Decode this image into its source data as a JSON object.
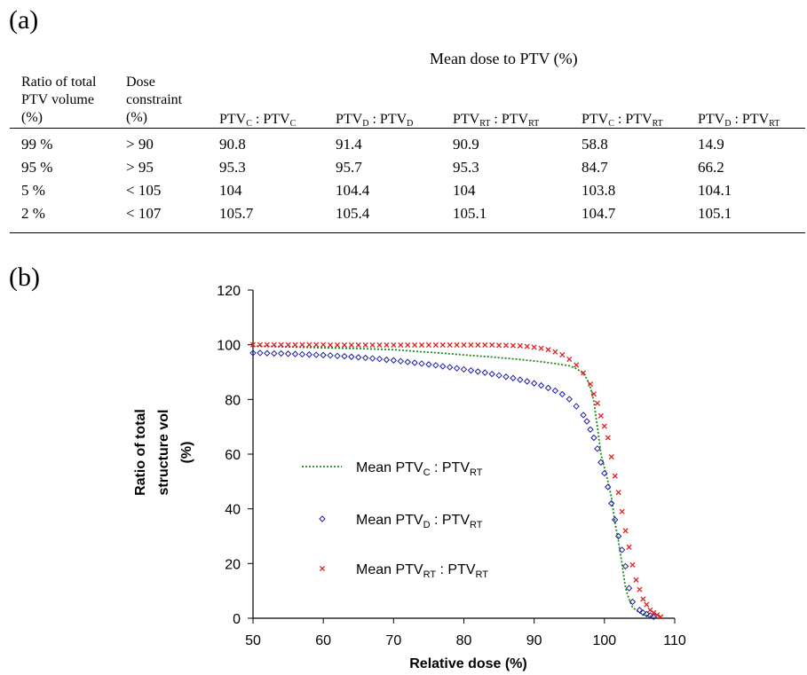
{
  "panel_labels": {
    "a": "(a)",
    "b": "(b)"
  },
  "table": {
    "group_header": "Mean dose to PTV (%)",
    "col_headers": [
      [
        "Ratio of total",
        "PTV volume",
        "(%)"
      ],
      [
        "Dose",
        "constraint",
        "(%)"
      ]
    ],
    "dose_cols": [
      {
        "a": "PTV",
        "as": "C",
        "sep": " : ",
        "b": "PTV",
        "bs": "C"
      },
      {
        "a": "PTV",
        "as": "D",
        "sep": " : ",
        "b": "PTV",
        "bs": "D"
      },
      {
        "a": "PTV",
        "as": "RT",
        "sep": " : ",
        "b": "PTV",
        "bs": "RT"
      },
      {
        "a": "PTV",
        "as": "C",
        "sep": " : ",
        "b": "PTV",
        "bs": "RT"
      },
      {
        "a": "PTV",
        "as": "D",
        "sep": " :  ",
        "b": "PTV",
        "bs": "RT"
      }
    ],
    "rows": [
      [
        "99 %",
        "> 90",
        "90.8",
        "91.4",
        "90.9",
        "58.8",
        "14.9"
      ],
      [
        "95 %",
        "> 95",
        "95.3",
        "95.7",
        "95.3",
        "84.7",
        "66.2"
      ],
      [
        "5 %",
        "< 105",
        "104",
        "104.4",
        "104",
        "103.8",
        "104.1"
      ],
      [
        "2 %",
        "< 107",
        "105.7",
        "105.4",
        "105.1",
        "104.7",
        "105.1"
      ]
    ]
  },
  "chart_data": {
    "type": "scatter",
    "xlabel": "Relative dose (%)",
    "ylabel_lines": [
      "Ratio of total",
      "structure vol",
      "(%)"
    ],
    "xlim": [
      50,
      110
    ],
    "ylim": [
      0,
      120
    ],
    "xticks": [
      50,
      60,
      70,
      80,
      90,
      100,
      110
    ],
    "yticks": [
      0,
      20,
      40,
      60,
      80,
      100,
      120
    ],
    "grid": false,
    "legend_position": "center-left",
    "series": [
      {
        "name": "Mean PTVC : PTVRT",
        "legend": {
          "pre": "Mean PTV",
          "s1": "C",
          "mid": " : PTV",
          "s2": "RT"
        },
        "style": "dotted-line",
        "color": "#1a8a1a",
        "points": [
          [
            50,
            99.5
          ],
          [
            55,
            99.2
          ],
          [
            60,
            98.9
          ],
          [
            65,
            98.6
          ],
          [
            70,
            98.2
          ],
          [
            73,
            97.6
          ],
          [
            76,
            97.1
          ],
          [
            80,
            96.3
          ],
          [
            84,
            95.5
          ],
          [
            88,
            94.6
          ],
          [
            91,
            93.8
          ],
          [
            93,
            93.1
          ],
          [
            95,
            92.3
          ],
          [
            96,
            91.3
          ],
          [
            97,
            89.5
          ],
          [
            97.5,
            87.5
          ],
          [
            98,
            84.5
          ],
          [
            98.5,
            79
          ],
          [
            99,
            70
          ],
          [
            99.5,
            60
          ],
          [
            100,
            55
          ],
          [
            100.5,
            50
          ],
          [
            101,
            44
          ],
          [
            101.5,
            35
          ],
          [
            102,
            28
          ],
          [
            102.5,
            20
          ],
          [
            103,
            11
          ],
          [
            103.5,
            7
          ],
          [
            104,
            4
          ],
          [
            105,
            2
          ],
          [
            106,
            1
          ],
          [
            107,
            0.5
          ]
        ]
      },
      {
        "name": "Mean PTVD : PTVRT",
        "legend": {
          "pre": "Mean PTV",
          "s1": "D",
          "mid": " : PTV",
          "s2": "RT"
        },
        "style": "diamond",
        "color": "#1f1fa0",
        "points": [
          [
            50,
            97.0
          ],
          [
            51,
            97.0
          ],
          [
            52,
            96.9
          ],
          [
            53,
            96.8
          ],
          [
            54,
            96.8
          ],
          [
            55,
            96.7
          ],
          [
            56,
            96.6
          ],
          [
            57,
            96.5
          ],
          [
            58,
            96.4
          ],
          [
            59,
            96.3
          ],
          [
            60,
            96.2
          ],
          [
            61,
            96.1
          ],
          [
            62,
            95.9
          ],
          [
            63,
            95.8
          ],
          [
            64,
            95.6
          ],
          [
            65,
            95.4
          ],
          [
            66,
            95.2
          ],
          [
            67,
            95.0
          ],
          [
            68,
            94.8
          ],
          [
            69,
            94.5
          ],
          [
            70,
            94.3
          ],
          [
            71,
            94.0
          ],
          [
            72,
            93.7
          ],
          [
            73,
            93.4
          ],
          [
            74,
            93.1
          ],
          [
            75,
            92.8
          ],
          [
            76,
            92.5
          ],
          [
            77,
            92.1
          ],
          [
            78,
            91.8
          ],
          [
            79,
            91.4
          ],
          [
            80,
            91.0
          ],
          [
            81,
            90.6
          ],
          [
            82,
            90.2
          ],
          [
            83,
            89.8
          ],
          [
            84,
            89.3
          ],
          [
            85,
            88.8
          ],
          [
            86,
            88.3
          ],
          [
            87,
            87.8
          ],
          [
            88,
            87.2
          ],
          [
            89,
            86.6
          ],
          [
            90,
            85.9
          ],
          [
            91,
            85.1
          ],
          [
            92,
            84.2
          ],
          [
            93,
            83.2
          ],
          [
            94,
            81.9
          ],
          [
            95,
            80.1
          ],
          [
            96,
            77.5
          ],
          [
            97,
            74.3
          ],
          [
            97.5,
            72
          ],
          [
            98,
            69.0
          ],
          [
            98.5,
            66
          ],
          [
            99,
            62
          ],
          [
            99.5,
            57
          ],
          [
            100,
            53
          ],
          [
            100.5,
            48
          ],
          [
            101,
            42
          ],
          [
            101.5,
            36
          ],
          [
            102,
            30
          ],
          [
            102.5,
            25
          ],
          [
            103,
            19
          ],
          [
            103.5,
            11
          ],
          [
            104,
            6
          ],
          [
            105,
            3
          ],
          [
            105.5,
            2
          ],
          [
            106,
            1.5
          ],
          [
            106.5,
            1
          ],
          [
            107,
            0.5
          ]
        ]
      },
      {
        "name": "Mean PTVRT : PTVRT",
        "legend": {
          "pre": "Mean PTV",
          "s1": "RT",
          "mid": " : PTV",
          "s2": "RT"
        },
        "style": "cross",
        "color": "#e02020",
        "points": [
          [
            50,
            100.0
          ],
          [
            51,
            100.0
          ],
          [
            52,
            100.0
          ],
          [
            53,
            100.0
          ],
          [
            54,
            100.0
          ],
          [
            55,
            100.0
          ],
          [
            56,
            100.0
          ],
          [
            57,
            100.0
          ],
          [
            58,
            100.0
          ],
          [
            59,
            100.0
          ],
          [
            60,
            100.0
          ],
          [
            61,
            99.9
          ],
          [
            62,
            99.9
          ],
          [
            63,
            99.9
          ],
          [
            64,
            99.9
          ],
          [
            65,
            99.9
          ],
          [
            66,
            99.9
          ],
          [
            67,
            99.9
          ],
          [
            68,
            99.9
          ],
          [
            69,
            99.9
          ],
          [
            70,
            99.9
          ],
          [
            71,
            99.9
          ],
          [
            72,
            99.9
          ],
          [
            73,
            99.9
          ],
          [
            74,
            99.9
          ],
          [
            75,
            99.9
          ],
          [
            76,
            99.9
          ],
          [
            77,
            99.9
          ],
          [
            78,
            99.9
          ],
          [
            79,
            99.9
          ],
          [
            80,
            99.9
          ],
          [
            81,
            99.9
          ],
          [
            82,
            99.9
          ],
          [
            83,
            99.9
          ],
          [
            84,
            99.9
          ],
          [
            85,
            99.8
          ],
          [
            86,
            99.8
          ],
          [
            87,
            99.7
          ],
          [
            88,
            99.6
          ],
          [
            89,
            99.4
          ],
          [
            90,
            99.1
          ],
          [
            91,
            98.7
          ],
          [
            92,
            98.2
          ],
          [
            93,
            97.4
          ],
          [
            94,
            96.3
          ],
          [
            95,
            94.7
          ],
          [
            96,
            92.6
          ],
          [
            97,
            89.7
          ],
          [
            98,
            85.6
          ],
          [
            98.5,
            82
          ],
          [
            99,
            78.6
          ],
          [
            99.5,
            74
          ],
          [
            100,
            70.2
          ],
          [
            100.5,
            66
          ],
          [
            101,
            59
          ],
          [
            101.5,
            52
          ],
          [
            102,
            46
          ],
          [
            102.5,
            39
          ],
          [
            103,
            32
          ],
          [
            103.5,
            26
          ],
          [
            104,
            19.5
          ],
          [
            104.5,
            14
          ],
          [
            105,
            10.5
          ],
          [
            105.5,
            7
          ],
          [
            106,
            5
          ],
          [
            106.5,
            3
          ],
          [
            107,
            2
          ],
          [
            107.5,
            1.2
          ],
          [
            108,
            0.5
          ]
        ]
      }
    ]
  }
}
